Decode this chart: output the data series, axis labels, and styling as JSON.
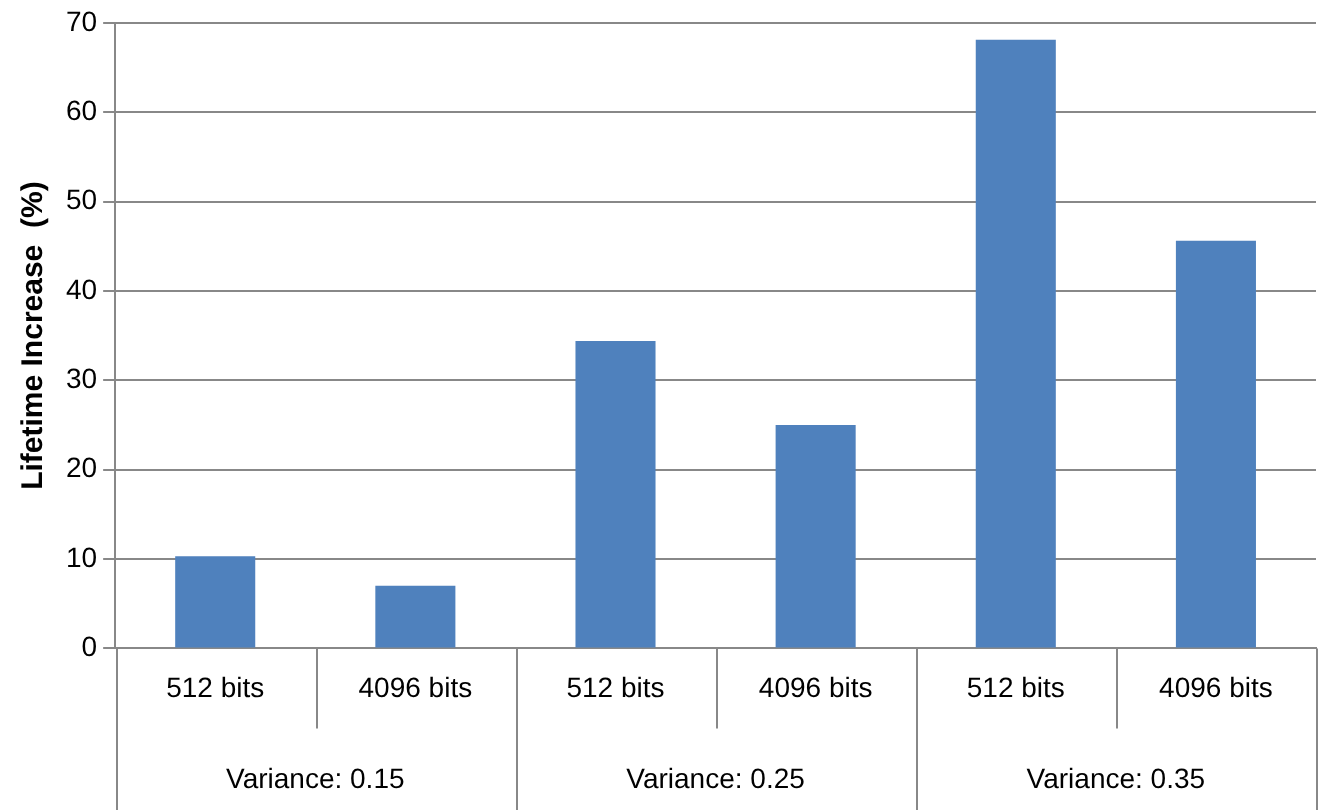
{
  "chart_data": {
    "type": "bar",
    "ylabel": "Lifetime Increase  (%)",
    "categories": [
      "512 bits",
      "4096 bits",
      "512 bits",
      "4096 bits",
      "512 bits",
      "4096 bits"
    ],
    "values": [
      10.3,
      7.0,
      34.4,
      25.0,
      68.1,
      45.6
    ],
    "color": "#4f81bd",
    "ylim": [
      0,
      70
    ],
    "yticks": [
      0,
      10,
      20,
      30,
      40,
      50,
      60,
      70
    ],
    "grid": "y",
    "annotations": [
      "Variance: 0.15",
      "Variance: 0.25",
      "Variance: 0.35"
    ]
  }
}
